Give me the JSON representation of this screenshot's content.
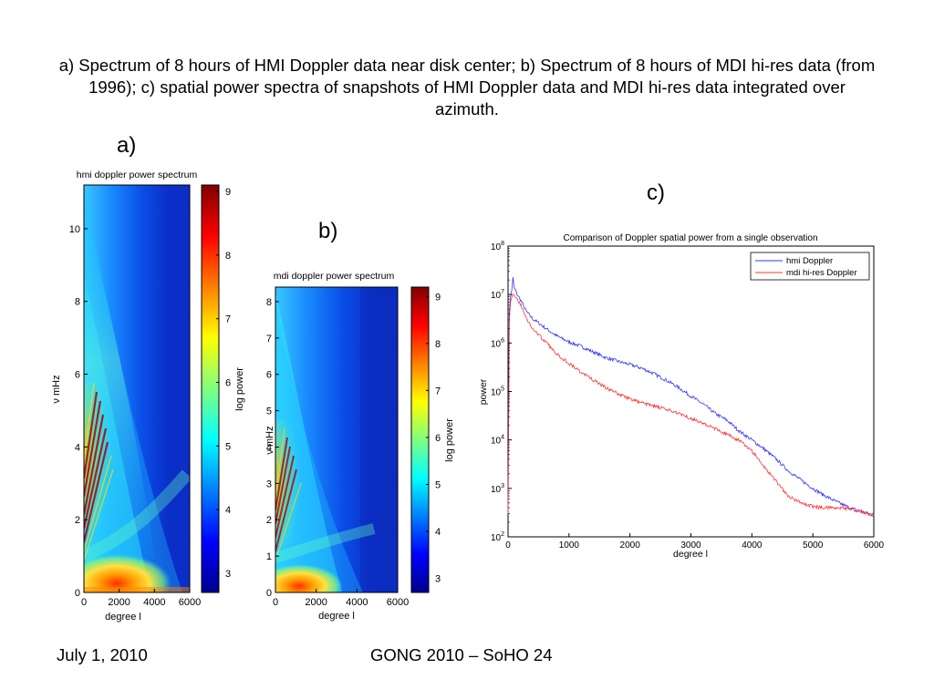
{
  "slide": {
    "title": "a) Spectrum of 8 hours of HMI Doppler data near disk center; b) Spectrum of 8 hours of MDI hi-res data (from 1996); c) spatial power spectra of snapshots of HMI Doppler data and MDI hi-res data integrated over azimuth.",
    "label_a": "a)",
    "label_b": "b)",
    "label_c": "c)",
    "footer_date": "July 1, 2010",
    "footer_conference": "GONG 2010 – SoHO 24"
  },
  "chart_data": [
    {
      "type": "heatmap",
      "title": "hmi doppler power spectrum",
      "xlabel": "degree l",
      "ylabel": "ν mHz",
      "xlim": [
        0,
        6000
      ],
      "ylim": [
        0,
        11.2
      ],
      "xticks": [
        "0",
        "2000",
        "4000",
        "6000"
      ],
      "yticks": [
        "0",
        "2",
        "4",
        "6",
        "8",
        "10"
      ],
      "colorbar": {
        "label": "log power",
        "range": [
          2.7,
          9.1
        ],
        "ticks": [
          "3",
          "4",
          "5",
          "6",
          "7",
          "8",
          "9"
        ],
        "colormap": "jet"
      }
    },
    {
      "type": "heatmap",
      "title": "mdi doppler power spectrum",
      "xlabel": "degree l",
      "ylabel": "ν mHz",
      "xlim": [
        0,
        6000
      ],
      "ylim": [
        0,
        8.4
      ],
      "xticks": [
        "0",
        "2000",
        "4000",
        "6000"
      ],
      "yticks": [
        "0",
        "1",
        "2",
        "3",
        "4",
        "5",
        "6",
        "7",
        "8"
      ],
      "colorbar": {
        "label": "log power",
        "range": [
          2.7,
          9.2
        ],
        "ticks": [
          "3",
          "4",
          "5",
          "6",
          "7",
          "8",
          "9"
        ],
        "colormap": "jet"
      }
    },
    {
      "type": "line",
      "title": "Comparison of Doppler spatial power from a single observation",
      "xlabel": "degree l",
      "ylabel": "power",
      "yscale": "log",
      "xlim": [
        0,
        6000
      ],
      "ylim": [
        100,
        100000000
      ],
      "xticks": [
        "0",
        "1000",
        "2000",
        "3000",
        "4000",
        "5000",
        "6000"
      ],
      "legend": "top-right",
      "grid": false,
      "series": [
        {
          "name": "hmi Doppler",
          "color": "#3333ff",
          "points": [
            [
              0,
              300
            ],
            [
              20,
              4000000
            ],
            [
              40,
              9000000
            ],
            [
              60,
              12000000
            ],
            [
              80,
              22000000
            ],
            [
              100,
              14000000
            ],
            [
              150,
              10000000
            ],
            [
              200,
              8000000
            ],
            [
              300,
              4500000
            ],
            [
              400,
              3200000
            ],
            [
              500,
              2600000
            ],
            [
              600,
              2100000
            ],
            [
              700,
              1700000
            ],
            [
              800,
              1400000
            ],
            [
              1000,
              1050000
            ],
            [
              1200,
              850000
            ],
            [
              1400,
              650000
            ],
            [
              1600,
              500000
            ],
            [
              1800,
              420000
            ],
            [
              2000,
              360000
            ],
            [
              2200,
              300000
            ],
            [
              2400,
              230000
            ],
            [
              2600,
              170000
            ],
            [
              2800,
              120000
            ],
            [
              3000,
              80000
            ],
            [
              3200,
              55000
            ],
            [
              3400,
              35000
            ],
            [
              3600,
              25000
            ],
            [
              3800,
              15000
            ],
            [
              4000,
              10000
            ],
            [
              4200,
              6500
            ],
            [
              4400,
              4000
            ],
            [
              4600,
              2300
            ],
            [
              4800,
              1500
            ],
            [
              5000,
              1000
            ],
            [
              5200,
              700
            ],
            [
              5400,
              520
            ],
            [
              5600,
              400
            ],
            [
              5800,
              330
            ],
            [
              6000,
              280
            ]
          ]
        },
        {
          "name": "mdi hi-res Doppler",
          "color": "#ff3333",
          "points": [
            [
              0,
              300
            ],
            [
              20,
              3000000
            ],
            [
              40,
              7000000
            ],
            [
              60,
              9000000
            ],
            [
              80,
              10000000
            ],
            [
              100,
              9000000
            ],
            [
              150,
              8000000
            ],
            [
              200,
              6500000
            ],
            [
              300,
              3200000
            ],
            [
              400,
              2000000
            ],
            [
              500,
              1500000
            ],
            [
              600,
              1100000
            ],
            [
              700,
              800000
            ],
            [
              800,
              600000
            ],
            [
              1000,
              380000
            ],
            [
              1200,
              250000
            ],
            [
              1400,
              170000
            ],
            [
              1600,
              120000
            ],
            [
              1800,
              90000
            ],
            [
              2000,
              70000
            ],
            [
              2200,
              58000
            ],
            [
              2400,
              50000
            ],
            [
              2600,
              42000
            ],
            [
              2800,
              36000
            ],
            [
              3000,
              28000
            ],
            [
              3200,
              22000
            ],
            [
              3400,
              17000
            ],
            [
              3600,
              13000
            ],
            [
              3800,
              9500
            ],
            [
              4000,
              6000
            ],
            [
              4200,
              2800
            ],
            [
              4400,
              1400
            ],
            [
              4600,
              700
            ],
            [
              4800,
              500
            ],
            [
              5000,
              420
            ],
            [
              5200,
              400
            ],
            [
              5400,
              390
            ],
            [
              5600,
              380
            ],
            [
              5800,
              330
            ],
            [
              6000,
              280
            ]
          ]
        }
      ]
    }
  ]
}
